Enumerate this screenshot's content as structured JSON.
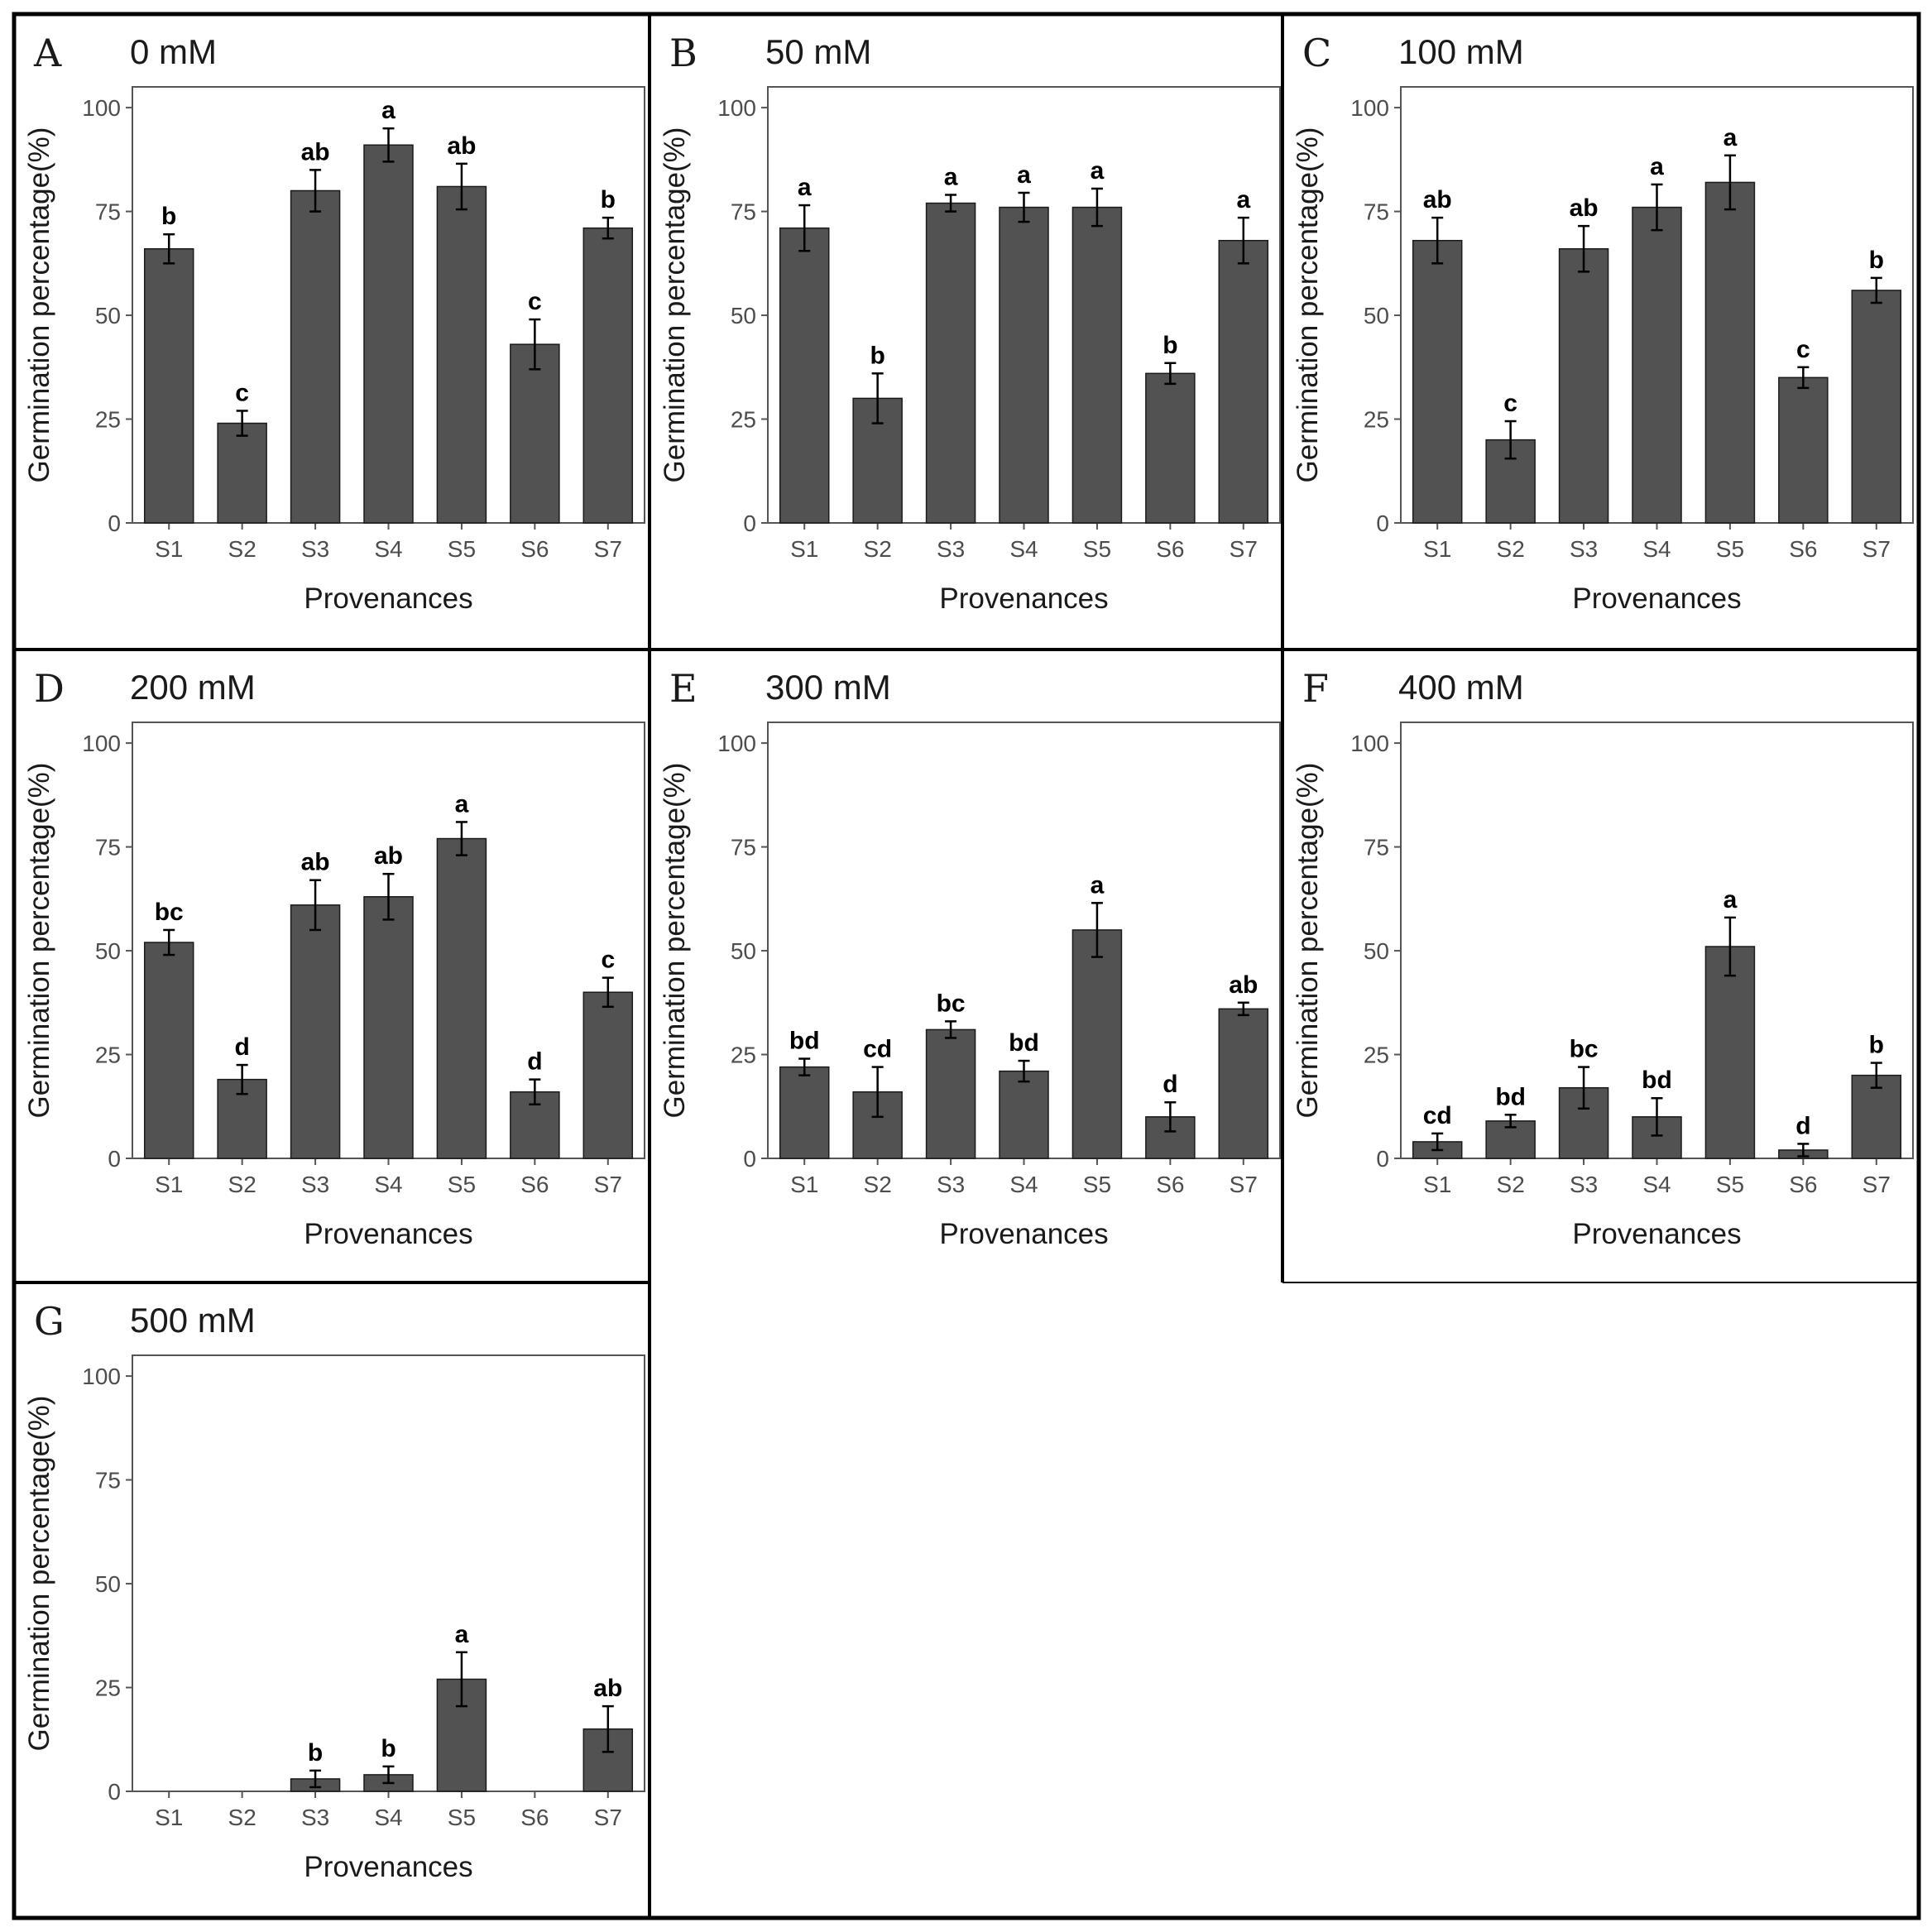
{
  "figure": {
    "colors": {
      "bar": "#525252",
      "error_bar": "#000000",
      "frame": "#000000"
    }
  },
  "chart_data": [
    {
      "panel": "A",
      "title": "0 mM",
      "type": "bar",
      "categories": [
        "S1",
        "S2",
        "S3",
        "S4",
        "S5",
        "S6",
        "S7"
      ],
      "values": [
        66,
        24,
        80,
        91,
        81,
        43,
        71
      ],
      "errors": [
        3.5,
        3,
        5,
        4,
        5.5,
        6,
        2.5
      ],
      "letters": [
        "b",
        "c",
        "ab",
        "a",
        "ab",
        "c",
        "b"
      ],
      "xlabel": "Provenances",
      "ylabel": "Germination percentage(%)",
      "ylim": [
        0,
        105
      ],
      "yticks": [
        0,
        25,
        50,
        75,
        100
      ]
    },
    {
      "panel": "B",
      "title": "50 mM",
      "type": "bar",
      "categories": [
        "S1",
        "S2",
        "S3",
        "S4",
        "S5",
        "S6",
        "S7"
      ],
      "values": [
        71,
        30,
        77,
        76,
        76,
        36,
        68
      ],
      "errors": [
        5.5,
        6,
        2,
        3.5,
        4.5,
        2.5,
        5.5
      ],
      "letters": [
        "a",
        "b",
        "a",
        "a",
        "a",
        "b",
        "a"
      ],
      "xlabel": "Provenances",
      "ylabel": "Germination percentage(%)",
      "ylim": [
        0,
        105
      ],
      "yticks": [
        0,
        25,
        50,
        75,
        100
      ]
    },
    {
      "panel": "C",
      "title": "100 mM",
      "type": "bar",
      "categories": [
        "S1",
        "S2",
        "S3",
        "S4",
        "S5",
        "S6",
        "S7"
      ],
      "values": [
        68,
        20,
        66,
        76,
        82,
        35,
        56
      ],
      "errors": [
        5.5,
        4.5,
        5.5,
        5.5,
        6.5,
        2.5,
        3
      ],
      "letters": [
        "ab",
        "c",
        "ab",
        "a",
        "a",
        "c",
        "b"
      ],
      "xlabel": "Provenances",
      "ylabel": "Germination percentage(%)",
      "ylim": [
        0,
        105
      ],
      "yticks": [
        0,
        25,
        50,
        75,
        100
      ]
    },
    {
      "panel": "D",
      "title": "200 mM",
      "type": "bar",
      "categories": [
        "S1",
        "S2",
        "S3",
        "S4",
        "S5",
        "S6",
        "S7"
      ],
      "values": [
        52,
        19,
        61,
        63,
        77,
        16,
        40
      ],
      "errors": [
        3,
        3.5,
        6,
        5.5,
        4,
        3,
        3.5
      ],
      "letters": [
        "bc",
        "d",
        "ab",
        "ab",
        "a",
        "d",
        "c"
      ],
      "xlabel": "Provenances",
      "ylabel": "Germination percentage(%)",
      "ylim": [
        0,
        105
      ],
      "yticks": [
        0,
        25,
        50,
        75,
        100
      ]
    },
    {
      "panel": "E",
      "title": "300 mM",
      "type": "bar",
      "categories": [
        "S1",
        "S2",
        "S3",
        "S4",
        "S5",
        "S6",
        "S7"
      ],
      "values": [
        22,
        16,
        31,
        21,
        55,
        10,
        36
      ],
      "errors": [
        2,
        6,
        2,
        2.5,
        6.5,
        3.5,
        1.5
      ],
      "letters": [
        "bd",
        "cd",
        "bc",
        "bd",
        "a",
        "d",
        "ab"
      ],
      "xlabel": "Provenances",
      "ylabel": "Germination percentage(%)",
      "ylim": [
        0,
        105
      ],
      "yticks": [
        0,
        25,
        50,
        75,
        100
      ]
    },
    {
      "panel": "F",
      "title": "400 mM",
      "type": "bar",
      "categories": [
        "S1",
        "S2",
        "S3",
        "S4",
        "S5",
        "S6",
        "S7"
      ],
      "values": [
        4,
        9,
        17,
        10,
        51,
        2,
        20
      ],
      "errors": [
        2,
        1.5,
        5,
        4.5,
        7,
        1.5,
        3
      ],
      "letters": [
        "cd",
        "bd",
        "bc",
        "bd",
        "a",
        "d",
        "b"
      ],
      "xlabel": "Provenances",
      "ylabel": "Germination percentage(%)",
      "ylim": [
        0,
        105
      ],
      "yticks": [
        0,
        25,
        50,
        75,
        100
      ]
    },
    {
      "panel": "G",
      "title": "500 mM",
      "type": "bar",
      "categories": [
        "S1",
        "S2",
        "S3",
        "S4",
        "S5",
        "S6",
        "S7"
      ],
      "values": [
        0,
        0,
        3,
        4,
        27,
        0,
        15
      ],
      "errors": [
        0,
        0,
        2,
        2,
        6.5,
        0,
        5.5
      ],
      "letters": [
        "",
        "",
        "b",
        "b",
        "a",
        "",
        "ab"
      ],
      "xlabel": "Provenances",
      "ylabel": "Germination percentage(%)",
      "ylim": [
        0,
        105
      ],
      "yticks": [
        0,
        25,
        50,
        75,
        100
      ]
    }
  ]
}
